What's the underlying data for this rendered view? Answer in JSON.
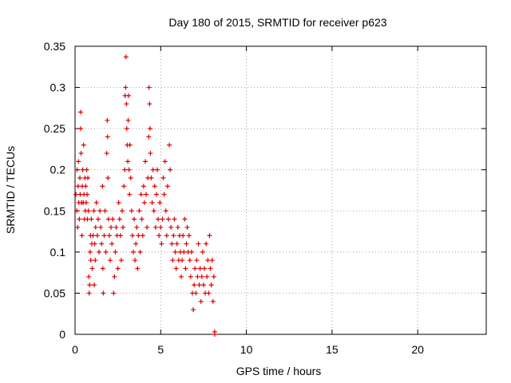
{
  "chart_data": {
    "type": "scatter",
    "title": "Day 180 of 2015, SRMTID for receiver p623",
    "xlabel": "GPS time / hours",
    "ylabel": "SRMTID / TECUs",
    "xlim": [
      0,
      24
    ],
    "ylim": [
      0,
      0.35
    ],
    "xticks": [
      0,
      5,
      10,
      15,
      20
    ],
    "xtick_labels": [
      "0",
      "5",
      "10",
      "15",
      "20"
    ],
    "yticks": [
      0,
      0.05,
      0.1,
      0.15,
      0.2,
      0.25,
      0.3,
      0.35
    ],
    "ytick_labels": [
      "0",
      "0.05",
      "0.1",
      "0.15",
      "0.2",
      "0.25",
      "0.3",
      "0.35"
    ],
    "grid": true,
    "marker": "plus",
    "color": "#e00000",
    "series": [
      {
        "name": "SRMTID",
        "points": [
          [
            0.05,
            0.17
          ],
          [
            0.1,
            0.15
          ],
          [
            0.12,
            0.2
          ],
          [
            0.15,
            0.13
          ],
          [
            0.18,
            0.18
          ],
          [
            0.2,
            0.21
          ],
          [
            0.22,
            0.16
          ],
          [
            0.25,
            0.14
          ],
          [
            0.28,
            0.19
          ],
          [
            0.3,
            0.17
          ],
          [
            0.32,
            0.25
          ],
          [
            0.33,
            0.27
          ],
          [
            0.35,
            0.22
          ],
          [
            0.38,
            0.16
          ],
          [
            0.4,
            0.12
          ],
          [
            0.42,
            0.18
          ],
          [
            0.45,
            0.2
          ],
          [
            0.48,
            0.16
          ],
          [
            0.5,
            0.23
          ],
          [
            0.52,
            0.17
          ],
          [
            0.55,
            0.14
          ],
          [
            0.58,
            0.19
          ],
          [
            0.6,
            0.15
          ],
          [
            0.62,
            0.18
          ],
          [
            0.65,
            0.16
          ],
          [
            0.68,
            0.2
          ],
          [
            0.7,
            0.17
          ],
          [
            0.72,
            0.14
          ],
          [
            0.75,
            0.19
          ],
          [
            0.78,
            0.15
          ],
          [
            0.8,
            0.07
          ],
          [
            0.82,
            0.05
          ],
          [
            0.85,
            0.06
          ],
          [
            0.88,
            0.1
          ],
          [
            0.9,
            0.12
          ],
          [
            0.92,
            0.09
          ],
          [
            0.95,
            0.14
          ],
          [
            0.98,
            0.11
          ],
          [
            1.0,
            0.08
          ],
          [
            1.05,
            0.12
          ],
          [
            1.1,
            0.15
          ],
          [
            1.12,
            0.06
          ],
          [
            1.15,
            0.11
          ],
          [
            1.18,
            0.09
          ],
          [
            1.2,
            0.13
          ],
          [
            1.25,
            0.16
          ],
          [
            1.3,
            0.12
          ],
          [
            1.35,
            0.14
          ],
          [
            1.4,
            0.1
          ],
          [
            1.45,
            0.15
          ],
          [
            1.5,
            0.13
          ],
          [
            1.55,
            0.11
          ],
          [
            1.6,
            0.18
          ],
          [
            1.62,
            0.08
          ],
          [
            1.65,
            0.05
          ],
          [
            1.7,
            0.12
          ],
          [
            1.75,
            0.15
          ],
          [
            1.8,
            0.1
          ],
          [
            1.85,
            0.22
          ],
          [
            1.88,
            0.26
          ],
          [
            1.9,
            0.24
          ],
          [
            1.92,
            0.19
          ],
          [
            1.95,
            0.14
          ],
          [
            2.0,
            0.12
          ],
          [
            2.05,
            0.09
          ],
          [
            2.1,
            0.13
          ],
          [
            2.15,
            0.11
          ],
          [
            2.2,
            0.14
          ],
          [
            2.25,
            0.05
          ],
          [
            2.3,
            0.07
          ],
          [
            2.35,
            0.1
          ],
          [
            2.4,
            0.13
          ],
          [
            2.45,
            0.12
          ],
          [
            2.5,
            0.08
          ],
          [
            2.55,
            0.16
          ],
          [
            2.6,
            0.14
          ],
          [
            2.65,
            0.12
          ],
          [
            2.7,
            0.09
          ],
          [
            2.75,
            0.15
          ],
          [
            2.8,
            0.13
          ],
          [
            2.85,
            0.18
          ],
          [
            2.9,
            0.2
          ],
          [
            2.92,
            0.29
          ],
          [
            2.95,
            0.3
          ],
          [
            2.97,
            0.337
          ],
          [
            3.0,
            0.28
          ],
          [
            3.02,
            0.25
          ],
          [
            3.05,
            0.23
          ],
          [
            3.08,
            0.21
          ],
          [
            3.1,
            0.26
          ],
          [
            3.12,
            0.29
          ],
          [
            3.15,
            0.2
          ],
          [
            3.18,
            0.17
          ],
          [
            3.2,
            0.23
          ],
          [
            3.25,
            0.19
          ],
          [
            3.3,
            0.15
          ],
          [
            3.35,
            0.12
          ],
          [
            3.4,
            0.1
          ],
          [
            3.45,
            0.14
          ],
          [
            3.5,
            0.09
          ],
          [
            3.55,
            0.11
          ],
          [
            3.6,
            0.13
          ],
          [
            3.65,
            0.08
          ],
          [
            3.7,
            0.12
          ],
          [
            3.75,
            0.15
          ],
          [
            3.8,
            0.1
          ],
          [
            3.85,
            0.17
          ],
          [
            3.9,
            0.14
          ],
          [
            3.95,
            0.12
          ],
          [
            4.0,
            0.18
          ],
          [
            4.05,
            0.16
          ],
          [
            4.1,
            0.21
          ],
          [
            4.15,
            0.17
          ],
          [
            4.2,
            0.13
          ],
          [
            4.25,
            0.19
          ],
          [
            4.3,
            0.24
          ],
          [
            4.32,
            0.3
          ],
          [
            4.35,
            0.28
          ],
          [
            4.38,
            0.25
          ],
          [
            4.4,
            0.22
          ],
          [
            4.45,
            0.19
          ],
          [
            4.5,
            0.16
          ],
          [
            4.55,
            0.2
          ],
          [
            4.6,
            0.15
          ],
          [
            4.65,
            0.18
          ],
          [
            4.7,
            0.13
          ],
          [
            4.75,
            0.17
          ],
          [
            4.8,
            0.2
          ],
          [
            4.85,
            0.14
          ],
          [
            4.9,
            0.12
          ],
          [
            4.95,
            0.16
          ],
          [
            5.0,
            0.13
          ],
          [
            5.05,
            0.11
          ],
          [
            5.1,
            0.14
          ],
          [
            5.15,
            0.19
          ],
          [
            5.2,
            0.17
          ],
          [
            5.25,
            0.21
          ],
          [
            5.3,
            0.15
          ],
          [
            5.35,
            0.12
          ],
          [
            5.4,
            0.18
          ],
          [
            5.45,
            0.14
          ],
          [
            5.5,
            0.23
          ],
          [
            5.55,
            0.2
          ],
          [
            5.6,
            0.13
          ],
          [
            5.65,
            0.11
          ],
          [
            5.7,
            0.09
          ],
          [
            5.75,
            0.12
          ],
          [
            5.8,
            0.14
          ],
          [
            5.85,
            0.1
          ],
          [
            5.9,
            0.08
          ],
          [
            5.95,
            0.11
          ],
          [
            6.0,
            0.13
          ],
          [
            6.05,
            0.09
          ],
          [
            6.1,
            0.12
          ],
          [
            6.15,
            0.1
          ],
          [
            6.2,
            0.07
          ],
          [
            6.25,
            0.09
          ],
          [
            6.3,
            0.12
          ],
          [
            6.35,
            0.1
          ],
          [
            6.4,
            0.14
          ],
          [
            6.45,
            0.08
          ],
          [
            6.5,
            0.11
          ],
          [
            6.55,
            0.13
          ],
          [
            6.6,
            0.1
          ],
          [
            6.65,
            0.12
          ],
          [
            6.7,
            0.09
          ],
          [
            6.75,
            0.07
          ],
          [
            6.8,
            0.1
          ],
          [
            6.85,
            0.05
          ],
          [
            6.9,
            0.03
          ],
          [
            6.95,
            0.06
          ],
          [
            7.0,
            0.08
          ],
          [
            7.05,
            0.05
          ],
          [
            7.1,
            0.09
          ],
          [
            7.15,
            0.07
          ],
          [
            7.2,
            0.11
          ],
          [
            7.25,
            0.06
          ],
          [
            7.3,
            0.08
          ],
          [
            7.35,
            0.04
          ],
          [
            7.4,
            0.07
          ],
          [
            7.45,
            0.1
          ],
          [
            7.5,
            0.06
          ],
          [
            7.55,
            0.08
          ],
          [
            7.6,
            0.05
          ],
          [
            7.65,
            0.11
          ],
          [
            7.7,
            0.07
          ],
          [
            7.75,
            0.09
          ],
          [
            7.8,
            0.05
          ],
          [
            7.85,
            0.12
          ],
          [
            7.9,
            0.08
          ],
          [
            7.95,
            0.06
          ],
          [
            8.0,
            0.09
          ],
          [
            8.05,
            0.04
          ],
          [
            8.1,
            0.07
          ],
          [
            8.15,
            0.0
          ],
          [
            8.15,
            0.003
          ]
        ]
      }
    ]
  }
}
